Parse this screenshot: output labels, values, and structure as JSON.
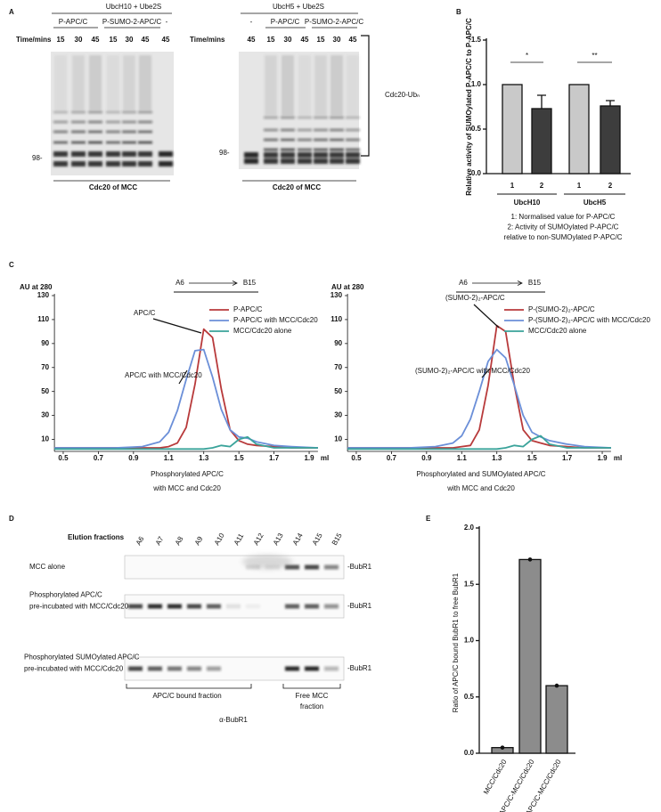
{
  "panel_labels": [
    "A",
    "B",
    "C",
    "D",
    "E"
  ],
  "gel_a": {
    "left": {
      "enzymes": "UbcH10 + Ube2S",
      "groups": [
        "P-APC/C",
        "P-SUMO-2-APC/C",
        "-"
      ],
      "time_label": "Time/mins",
      "lanes": [
        "15",
        "30",
        "45",
        "15",
        "30",
        "45",
        "45"
      ],
      "marker": "98-",
      "caption": "Cdc20 of MCC"
    },
    "right": {
      "enzymes": "UbcH5 + Ube2S",
      "groups": [
        "-",
        "P-APC/C",
        "P-SUMO-2-APC/C"
      ],
      "time_label": "Time/mins",
      "lanes": [
        "45",
        "15",
        "30",
        "45",
        "15",
        "30",
        "45"
      ],
      "marker": "98-",
      "caption": "Cdc20 of MCC"
    },
    "bracket_label": "Cdc20-Ubₙ"
  },
  "chart_data": [
    {
      "type": "bar",
      "ylabel": "Relative activity of SUMOylated P-APC/C to P-APC/C",
      "categories": [
        "1",
        "2",
        "1",
        "2"
      ],
      "groups": [
        "UbcH10",
        "UbcH5"
      ],
      "values": [
        1.0,
        0.73,
        1.0,
        0.76
      ],
      "errors": [
        null,
        0.15,
        null,
        0.06
      ],
      "colors": [
        "#c9c9c9",
        "#3d3d3d",
        "#c9c9c9",
        "#3d3d3d"
      ],
      "significance": [
        "*",
        "**"
      ],
      "ylim": [
        0,
        1.5
      ],
      "yticks": [
        {
          "value": 0,
          "label": "0.0"
        },
        {
          "value": 0.5,
          "label": "0.5"
        },
        {
          "value": 1,
          "label": "1.0"
        },
        {
          "value": 1.5,
          "label": "1.5"
        }
      ],
      "notes": [
        "1: Normalised value for P-APC/C",
        "2: Activity of SUMOylated P-APC/C",
        "relative to non-SUMOylated P-APC/C"
      ]
    },
    {
      "type": "line",
      "ylabel": "AU at 280",
      "xlabel": "ml",
      "fraction_range": [
        "A6",
        "B15"
      ],
      "annotations": [
        "APC/C",
        "APC/C with MCC/Cdc20"
      ],
      "caption": [
        "Phosphorylated APC/C",
        "with MCC and Cdc20"
      ],
      "x": [
        0.45,
        0.6,
        0.8,
        0.95,
        1.05,
        1.1,
        1.15,
        1.2,
        1.25,
        1.3,
        1.35,
        1.4,
        1.45,
        1.5,
        1.55,
        1.6,
        1.7,
        1.8,
        1.95
      ],
      "series": [
        {
          "name": "P-APC/C",
          "color": "#b83a3b",
          "values": [
            3,
            3,
            3,
            3,
            3,
            4,
            7,
            20,
            56,
            102,
            95,
            52,
            18,
            9,
            6,
            5,
            4,
            3,
            3
          ]
        },
        {
          "name": "P-APC/C with MCC/Cdc20",
          "color": "#6b8fd8",
          "values": [
            3,
            3,
            3,
            4,
            8,
            16,
            34,
            60,
            84,
            85,
            62,
            35,
            18,
            12,
            11,
            8,
            5,
            4,
            3
          ]
        },
        {
          "name": "MCC/Cdc20 alone",
          "color": "#3aa39a",
          "values": [
            2,
            2,
            2,
            2,
            2,
            2,
            2,
            2,
            2,
            2,
            3,
            5,
            4,
            10,
            12,
            6,
            3,
            3,
            3
          ]
        }
      ],
      "xlim": [
        0.45,
        1.95
      ],
      "xticks": [
        0.5,
        0.7,
        0.9,
        1.1,
        1.3,
        1.5,
        1.7,
        1.9
      ],
      "ylim": [
        0,
        130
      ],
      "yticks": [
        10,
        30,
        50,
        70,
        90,
        110,
        130
      ]
    },
    {
      "type": "line",
      "ylabel": "AU at 280",
      "xlabel": "ml",
      "fraction_range": [
        "A6",
        "B15"
      ],
      "annotations": [
        "(SUMO-2)₂-APC/C",
        "(SUMO-2)₂-APC/C with MCC/Cdc20"
      ],
      "caption": [
        "Phosphorylated and SUMOylated APC/C",
        "with MCC and Cdc20"
      ],
      "x": [
        0.45,
        0.6,
        0.8,
        0.95,
        1.05,
        1.1,
        1.15,
        1.2,
        1.25,
        1.3,
        1.35,
        1.4,
        1.45,
        1.5,
        1.55,
        1.6,
        1.7,
        1.8,
        1.95
      ],
      "series": [
        {
          "name": "P-(SUMO-2)₂-APC/C",
          "color": "#b83a3b",
          "values": [
            3,
            3,
            3,
            3,
            3,
            4,
            5,
            18,
            55,
            105,
            100,
            55,
            18,
            9,
            7,
            5,
            4,
            3,
            3
          ]
        },
        {
          "name": "P-(SUMO-2)₂-APC/C with MCC/Cdc20",
          "color": "#6b8fd8",
          "values": [
            3,
            3,
            3,
            4,
            7,
            13,
            27,
            50,
            75,
            85,
            78,
            55,
            30,
            16,
            12,
            9,
            6,
            4,
            3
          ]
        },
        {
          "name": "MCC/Cdc20 alone",
          "color": "#3aa39a",
          "values": [
            2,
            2,
            2,
            2,
            2,
            2,
            2,
            2,
            2,
            2,
            3,
            5,
            4,
            10,
            13,
            6,
            3,
            3,
            3
          ]
        }
      ],
      "xlim": [
        0.45,
        1.95
      ],
      "xticks": [
        0.5,
        0.7,
        0.9,
        1.1,
        1.3,
        1.5,
        1.7,
        1.9
      ],
      "ylim": [
        0,
        130
      ],
      "yticks": [
        10,
        30,
        50,
        70,
        90,
        110,
        130
      ]
    },
    {
      "type": "bar",
      "ylabel": "Ratio of APC/C bound BubR1 to free BubR1",
      "categories": [
        "MCC/Cdc20",
        "P-APC/C-MCC/Cdc20",
        "P-(SUMO)₂-APC/C-MCC/Cdc20"
      ],
      "values": [
        0.05,
        1.72,
        0.6
      ],
      "color": "#8c8c8c",
      "points": true,
      "ylim": [
        0,
        2
      ],
      "yticks": [
        {
          "value": 0,
          "label": "0.0"
        },
        {
          "value": 0.5,
          "label": "0.5"
        },
        {
          "value": 1,
          "label": "1.0"
        },
        {
          "value": 1.5,
          "label": "1.5"
        },
        {
          "value": 2,
          "label": "2.0"
        }
      ]
    }
  ],
  "gel_d": {
    "title": "Elution fractions",
    "fractions": [
      "A6",
      "A7",
      "A8",
      "A9",
      "A10",
      "A11",
      "A12",
      "A13",
      "A14",
      "A15",
      "B15"
    ],
    "rows": [
      {
        "lines": [
          "MCC alone"
        ],
        "band": "-BubR1"
      },
      {
        "lines": [
          "Phosphorylated  APC/C",
          "pre-incubated with MCC/Cdc20"
        ],
        "band": "-BubR1"
      },
      {
        "lines": [
          "Phosphorylated SUMOylated APC/C",
          "pre-incubated with MCC/Cdc20"
        ],
        "band": "-BubR1"
      }
    ],
    "bound_label": "APC/C bound fraction",
    "free_label": [
      "Free MCC",
      "fraction"
    ],
    "antibody": "α-BubR1"
  }
}
